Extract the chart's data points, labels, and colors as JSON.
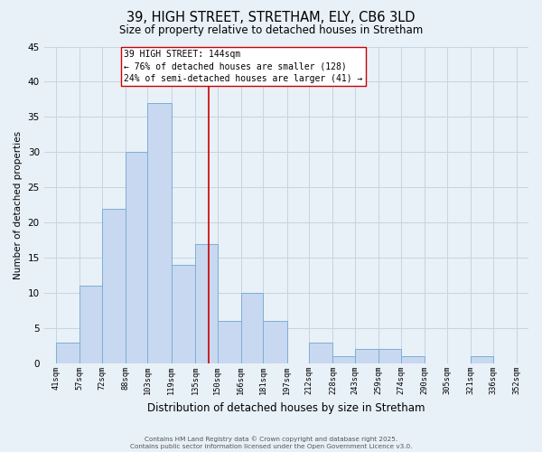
{
  "title": "39, HIGH STREET, STRETHAM, ELY, CB6 3LD",
  "subtitle": "Size of property relative to detached houses in Stretham",
  "xlabel": "Distribution of detached houses by size in Stretham",
  "ylabel": "Number of detached properties",
  "bar_left_edges": [
    41,
    57,
    72,
    88,
    103,
    119,
    135,
    150,
    166,
    181,
    197,
    212,
    228,
    243,
    259,
    274,
    290,
    305,
    321,
    336
  ],
  "bar_widths": [
    16,
    15,
    16,
    15,
    16,
    16,
    15,
    16,
    15,
    16,
    15,
    16,
    15,
    16,
    15,
    16,
    15,
    16,
    15,
    16
  ],
  "bar_heights": [
    3,
    11,
    22,
    30,
    37,
    14,
    17,
    6,
    10,
    6,
    0,
    3,
    1,
    2,
    2,
    1,
    0,
    0,
    1,
    0
  ],
  "bar_color": "#c8d8f0",
  "bar_edgecolor": "#7bafd4",
  "vline_x": 144,
  "vline_color": "#cc0000",
  "ylim": [
    0,
    45
  ],
  "yticks": [
    0,
    5,
    10,
    15,
    20,
    25,
    30,
    35,
    40,
    45
  ],
  "xtick_labels": [
    "41sqm",
    "57sqm",
    "72sqm",
    "88sqm",
    "103sqm",
    "119sqm",
    "135sqm",
    "150sqm",
    "166sqm",
    "181sqm",
    "197sqm",
    "212sqm",
    "228sqm",
    "243sqm",
    "259sqm",
    "274sqm",
    "290sqm",
    "305sqm",
    "321sqm",
    "336sqm",
    "352sqm"
  ],
  "xtick_positions": [
    41,
    57,
    72,
    88,
    103,
    119,
    135,
    150,
    166,
    181,
    197,
    212,
    228,
    243,
    259,
    274,
    290,
    305,
    321,
    336,
    352
  ],
  "annotation_title": "39 HIGH STREET: 144sqm",
  "annotation_line1": "← 76% of detached houses are smaller (128)",
  "annotation_line2": "24% of semi-detached houses are larger (41) →",
  "grid_color": "#c8d4e0",
  "background_color": "#e8f0f8",
  "footer1": "Contains HM Land Registry data © Crown copyright and database right 2025.",
  "footer2": "Contains public sector information licensed under the Open Government Licence v3.0.",
  "xlim_left": 33,
  "xlim_right": 360
}
